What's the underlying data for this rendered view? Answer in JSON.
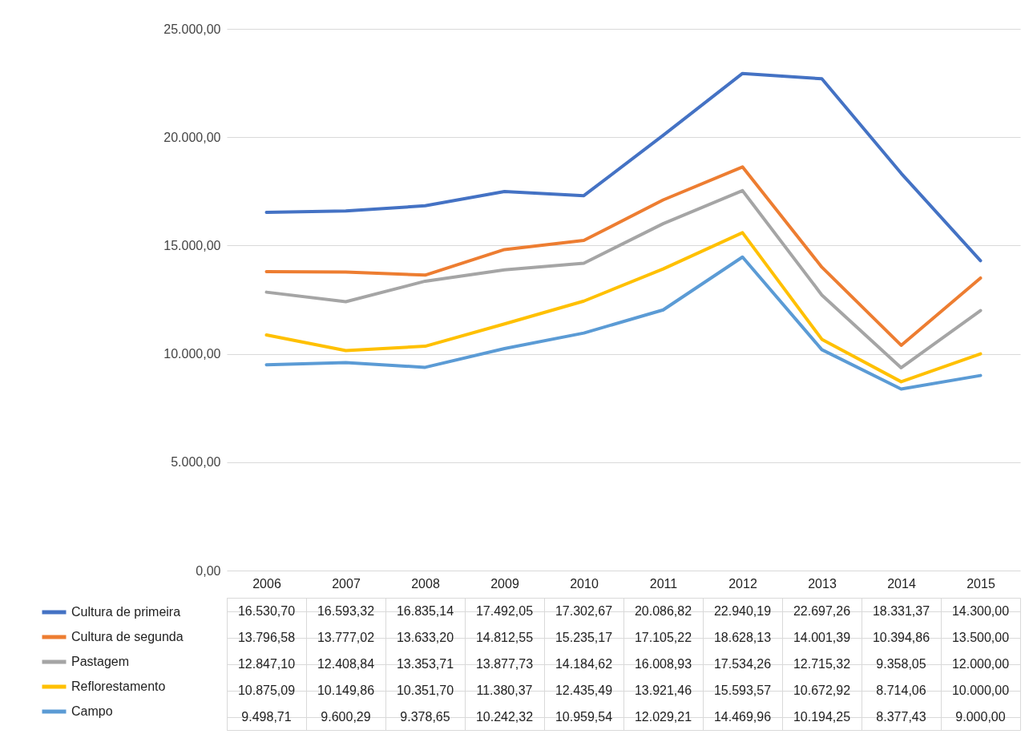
{
  "chart_data": {
    "type": "line",
    "categories": [
      "2006",
      "2007",
      "2008",
      "2009",
      "2010",
      "2011",
      "2012",
      "2013",
      "2014",
      "2015"
    ],
    "series": [
      {
        "name": "Cultura de primeira",
        "color": "#4472c4",
        "values": [
          16530.7,
          16593.32,
          16835.14,
          17492.05,
          17302.67,
          20086.82,
          22940.19,
          22697.26,
          18331.37,
          14300.0
        ],
        "value_labels": [
          "16.530,70",
          "16.593,32",
          "16.835,14",
          "17.492,05",
          "17.302,67",
          "20.086,82",
          "22.940,19",
          "22.697,26",
          "18.331,37",
          "14.300,00"
        ]
      },
      {
        "name": "Cultura de segunda",
        "color": "#ed7d31",
        "values": [
          13796.58,
          13777.02,
          13633.2,
          14812.55,
          15235.17,
          17105.22,
          18628.13,
          14001.39,
          10394.86,
          13500.0
        ],
        "value_labels": [
          "13.796,58",
          "13.777,02",
          "13.633,20",
          "14.812,55",
          "15.235,17",
          "17.105,22",
          "18.628,13",
          "14.001,39",
          "10.394,86",
          "13.500,00"
        ]
      },
      {
        "name": "Pastagem",
        "color": "#a5a5a5",
        "values": [
          12847.1,
          12408.84,
          13353.71,
          13877.73,
          14184.62,
          16008.93,
          17534.26,
          12715.32,
          9358.05,
          12000.0
        ],
        "value_labels": [
          "12.847,10",
          "12.408,84",
          "13.353,71",
          "13.877,73",
          "14.184,62",
          "16.008,93",
          "17.534,26",
          "12.715,32",
          "9.358,05",
          "12.000,00"
        ]
      },
      {
        "name": "Reflorestamento",
        "color": "#ffc000",
        "values": [
          10875.09,
          10149.86,
          10351.7,
          11380.37,
          12435.49,
          13921.46,
          15593.57,
          10672.92,
          8714.06,
          10000.0
        ],
        "value_labels": [
          "10.875,09",
          "10.149,86",
          "10.351,70",
          "11.380,37",
          "12.435,49",
          "13.921,46",
          "15.593,57",
          "10.672,92",
          "8.714,06",
          "10.000,00"
        ]
      },
      {
        "name": "Campo",
        "color": "#5b9bd5",
        "values": [
          9498.71,
          9600.29,
          9378.65,
          10242.32,
          10959.54,
          12029.21,
          14469.96,
          10194.25,
          8377.43,
          9000.0
        ],
        "value_labels": [
          "9.498,71",
          "9.600,29",
          "9.378,65",
          "10.242,32",
          "10.959,54",
          "12.029,21",
          "14.469,96",
          "10.194,25",
          "8.377,43",
          "9.000,00"
        ]
      }
    ],
    "ylim": [
      0,
      25000
    ],
    "yticks": [
      {
        "value": 0,
        "label": "0,00"
      },
      {
        "value": 5000,
        "label": "5.000,00"
      },
      {
        "value": 10000,
        "label": "10.000,00"
      },
      {
        "value": 15000,
        "label": "15.000,00"
      },
      {
        "value": 20000,
        "label": "20.000,00"
      },
      {
        "value": 25000,
        "label": "25.000,00"
      }
    ],
    "grid": "y",
    "legend": "bottom"
  }
}
